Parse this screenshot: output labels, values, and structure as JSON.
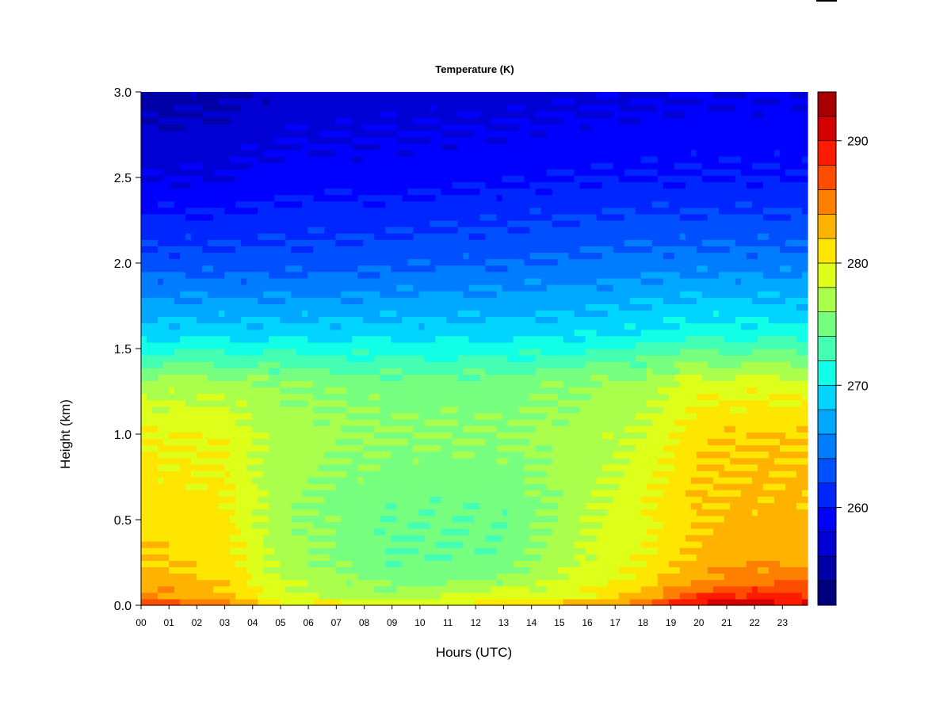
{
  "chart_data": {
    "type": "heatmap",
    "title": "Temperature (K)",
    "xlabel": "Hours (UTC)",
    "ylabel": "Height (km)",
    "x_ticks": [
      "00",
      "01",
      "02",
      "03",
      "04",
      "05",
      "06",
      "07",
      "08",
      "09",
      "10",
      "11",
      "12",
      "13",
      "14",
      "15",
      "16",
      "17",
      "18",
      "19",
      "20",
      "21",
      "22",
      "23"
    ],
    "x_range": [
      0,
      23.9
    ],
    "y_ticks": [
      "0.0",
      "0.5",
      "1.0",
      "1.5",
      "2.0",
      "2.5",
      "3.0"
    ],
    "y_range": [
      0,
      3.0
    ],
    "colorbar": {
      "ticks": [
        "260",
        "270",
        "280",
        "290"
      ],
      "range": [
        252,
        294
      ],
      "step": 2,
      "colors": [
        "#00007f",
        "#0000a6",
        "#0000d4",
        "#0000ff",
        "#0026ff",
        "#0050ff",
        "#007cff",
        "#00a8ff",
        "#00d4ff",
        "#11ffe6",
        "#44ffb3",
        "#77ff80",
        "#aaff4d",
        "#ddff1a",
        "#ffe600",
        "#ffb300",
        "#ff8000",
        "#ff4d00",
        "#ff1a00",
        "#d40000",
        "#a80000"
      ]
    },
    "profiles": [
      {
        "hour": 0,
        "heights": [
          0,
          0.05,
          0.15,
          0.3,
          0.6,
          1.0,
          1.3,
          1.6,
          2.0,
          2.5,
          3.0
        ],
        "temps": [
          289,
          285,
          283,
          282,
          281,
          280,
          277,
          269,
          263,
          258,
          255
        ]
      },
      {
        "hour": 3,
        "heights": [
          0,
          0.05,
          0.15,
          0.3,
          0.6,
          1.0,
          1.3,
          1.6,
          2.0,
          2.5,
          3.0
        ],
        "temps": [
          285,
          283,
          281.5,
          281,
          280.5,
          279.5,
          277,
          269,
          263,
          258,
          255.5
        ]
      },
      {
        "hour": 5,
        "heights": [
          0,
          0.05,
          0.15,
          0.3,
          0.6,
          1.0,
          1.3,
          1.6,
          2.0,
          2.5,
          3.0
        ],
        "temps": [
          281,
          279,
          278,
          277,
          276.5,
          277,
          276,
          269,
          263,
          259,
          256.5
        ]
      },
      {
        "hour": 9,
        "heights": [
          0,
          0.05,
          0.15,
          0.3,
          0.6,
          1.0,
          1.3,
          1.6,
          2.0,
          2.5,
          3.0
        ],
        "temps": [
          280,
          277,
          275,
          274,
          274.5,
          276,
          275,
          269,
          263.5,
          259,
          257
        ]
      },
      {
        "hour": 13,
        "heights": [
          0,
          0.05,
          0.15,
          0.3,
          0.6,
          1.0,
          1.3,
          1.6,
          2.0,
          2.5,
          3.0
        ],
        "temps": [
          281,
          279,
          276,
          274.5,
          274.5,
          276,
          275,
          269,
          264,
          259.5,
          257
        ]
      },
      {
        "hour": 16,
        "heights": [
          0,
          0.05,
          0.15,
          0.3,
          0.6,
          1.0,
          1.3,
          1.6,
          2.0,
          2.5,
          3.0
        ],
        "temps": [
          284,
          280,
          279,
          278,
          277.5,
          277,
          276,
          269.5,
          264.5,
          260,
          257.5
        ]
      },
      {
        "hour": 18,
        "heights": [
          0,
          0.05,
          0.15,
          0.3,
          0.6,
          1.0,
          1.3,
          1.6,
          2.0,
          2.5,
          3.0
        ],
        "temps": [
          286,
          283,
          281,
          280,
          279.5,
          278.5,
          277,
          270,
          265,
          260,
          257.5
        ]
      },
      {
        "hour": 20,
        "heights": [
          0,
          0.05,
          0.15,
          0.3,
          0.6,
          1.0,
          1.3,
          1.6,
          2.0,
          2.5,
          3.0
        ],
        "temps": [
          292,
          288,
          284,
          282.5,
          282,
          281.5,
          279,
          271,
          265,
          260,
          258
        ]
      },
      {
        "hour": 22,
        "heights": [
          0,
          0.05,
          0.15,
          0.3,
          0.6,
          1.0,
          1.3,
          1.6,
          2.0,
          2.5,
          3.0
        ],
        "temps": [
          292,
          289,
          285.5,
          283,
          282.5,
          282,
          279,
          271,
          265,
          260,
          258
        ]
      },
      {
        "hour": 23.9,
        "heights": [
          0,
          0.05,
          0.15,
          0.3,
          0.6,
          1.0,
          1.3,
          1.6,
          2.0,
          2.5,
          3.0
        ],
        "temps": [
          291,
          288,
          285,
          283,
          282.5,
          282,
          279,
          270.5,
          265,
          260,
          258
        ]
      }
    ]
  }
}
